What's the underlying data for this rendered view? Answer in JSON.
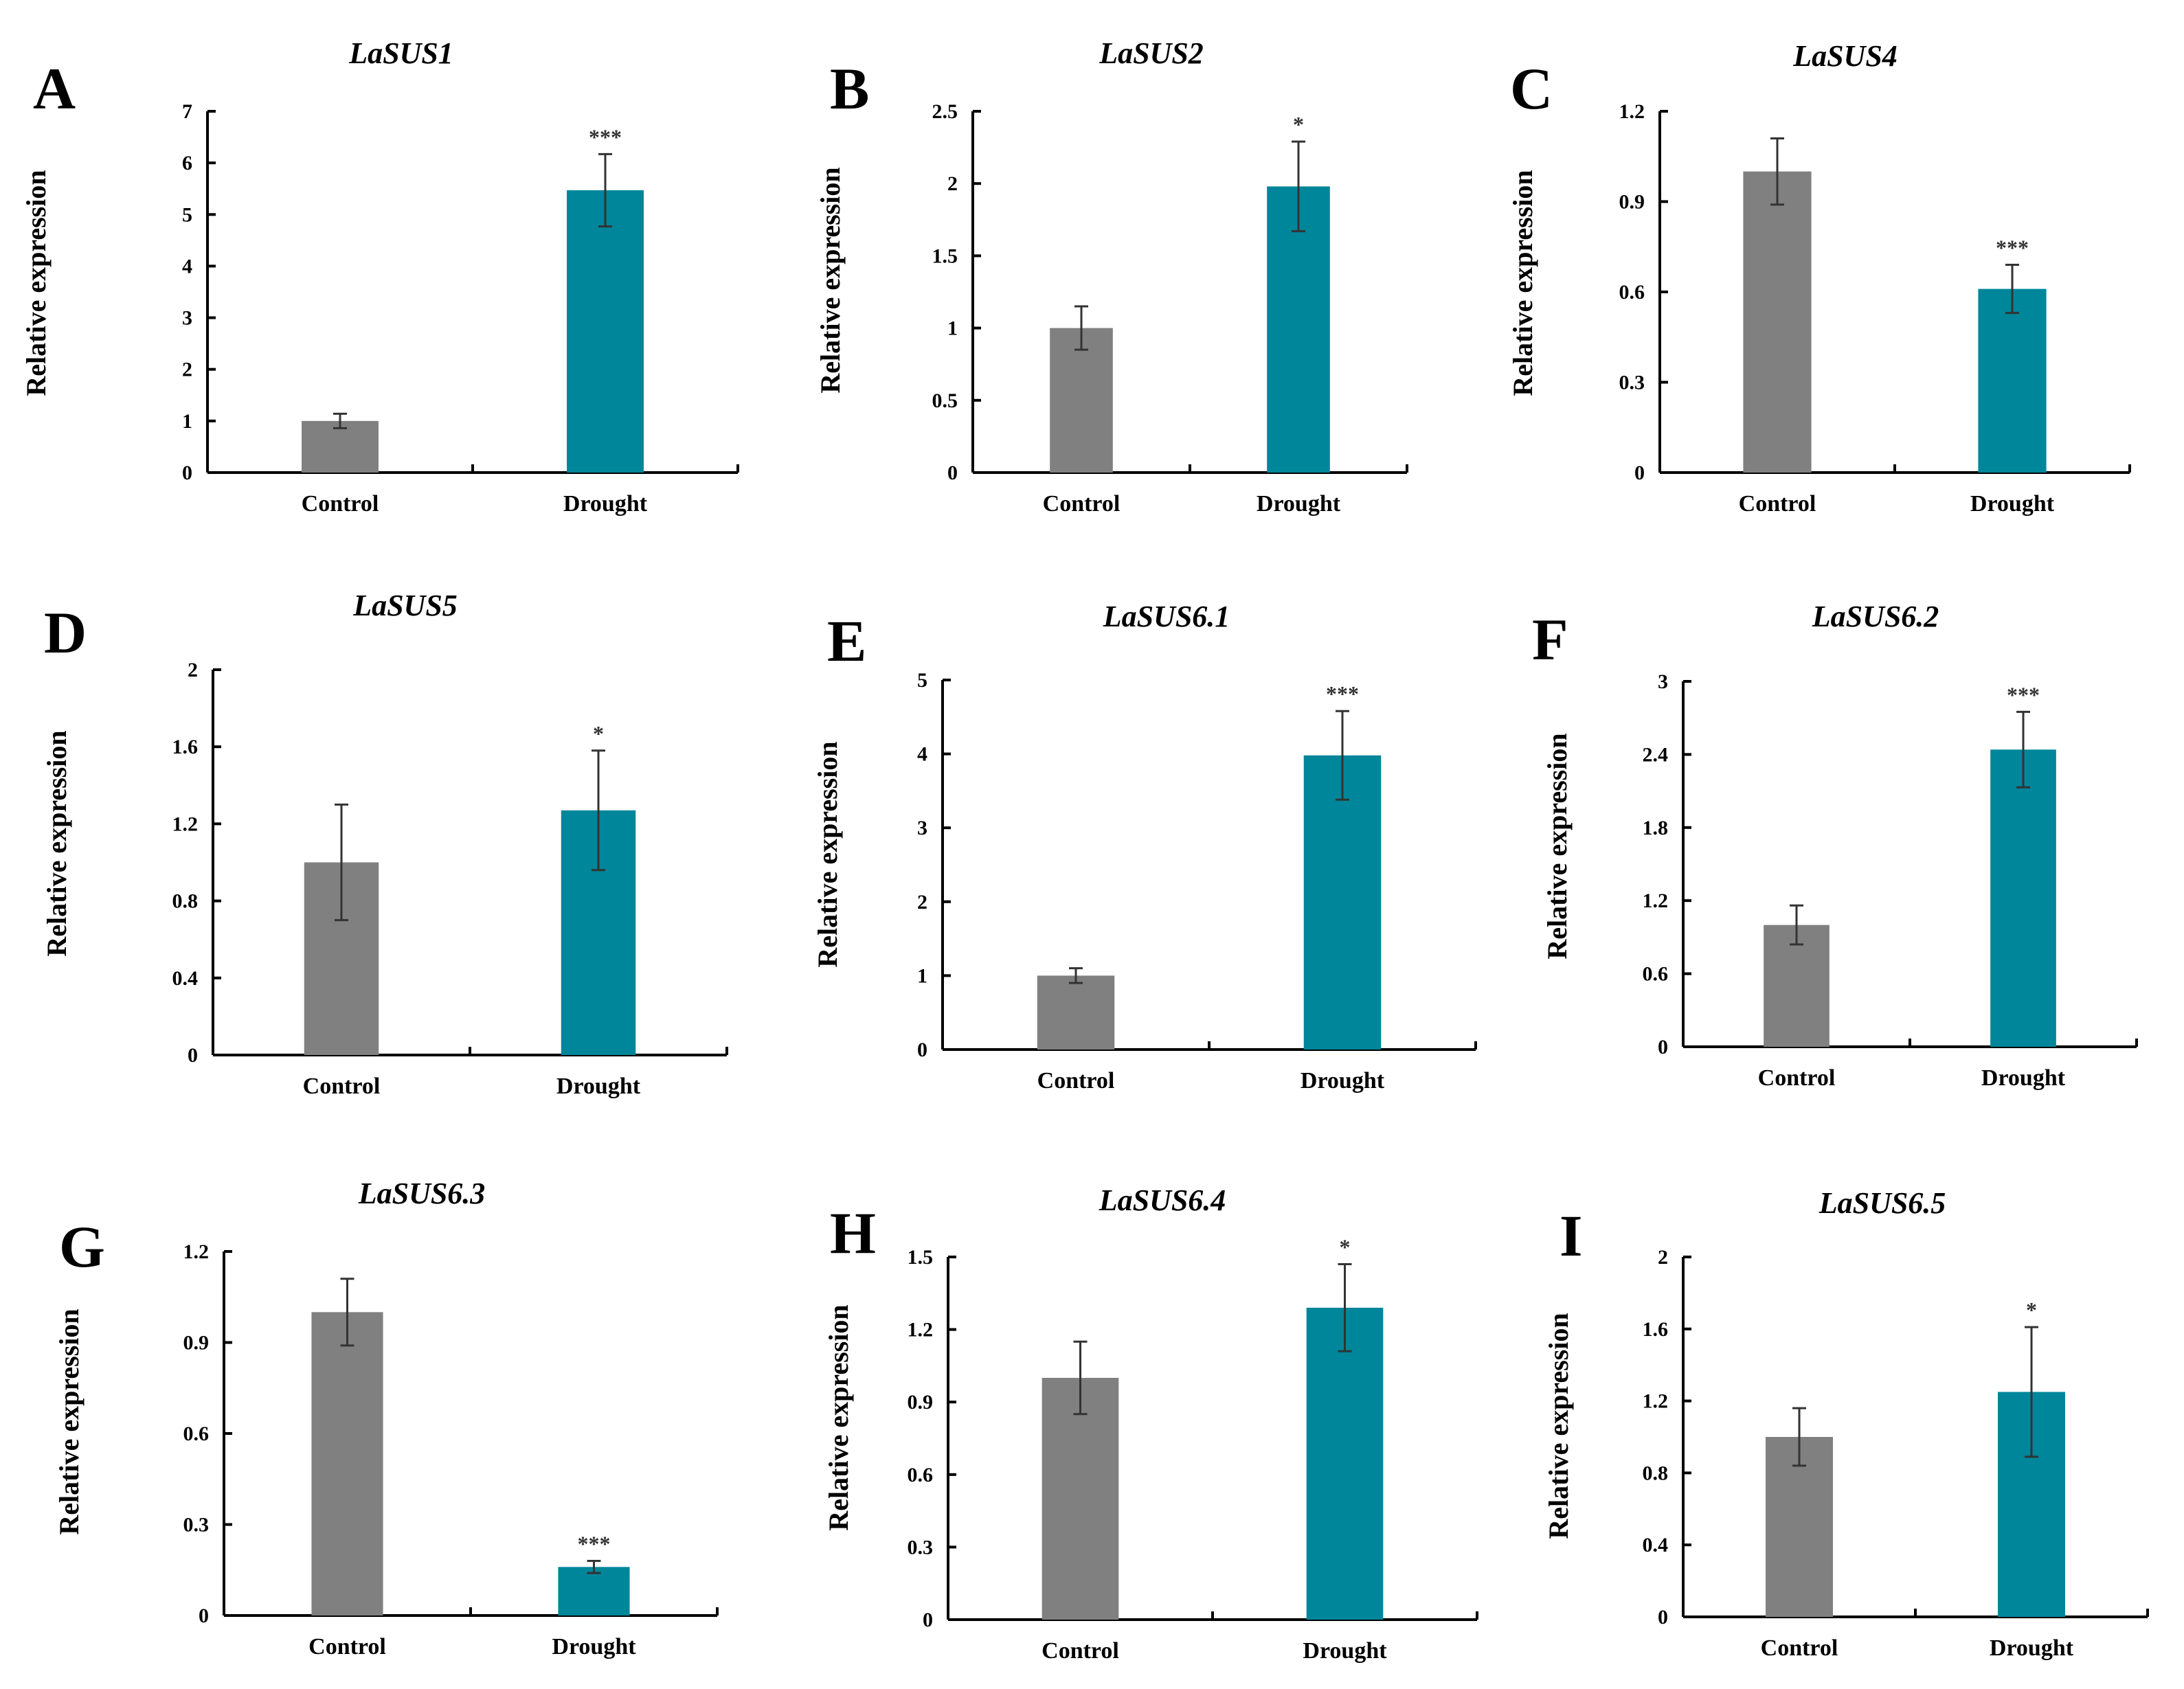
{
  "colors": {
    "control": "#808080",
    "drought": "#00869A",
    "axis": "#000000",
    "error": "#333333"
  },
  "chart_data": [
    {
      "panel": "A",
      "type": "bar",
      "title": "LaSUS1",
      "ylabel": "Relative expression",
      "xlabel": "",
      "categories": [
        "Control",
        "Drought"
      ],
      "values": [
        1.0,
        5.47
      ],
      "errors": [
        0.14,
        0.7
      ],
      "significance": [
        "",
        "***"
      ],
      "ylim": [
        0,
        7
      ],
      "yticks": [
        0,
        1,
        2,
        3,
        4,
        5,
        6,
        7
      ],
      "ytick_labels": [
        "0",
        "1",
        "2",
        "3",
        "4",
        "5",
        "6",
        "7"
      ]
    },
    {
      "panel": "B",
      "type": "bar",
      "title": "LaSUS2",
      "ylabel": "Relative expression",
      "xlabel": "",
      "categories": [
        "Control",
        "Drought"
      ],
      "values": [
        1.0,
        1.98
      ],
      "errors": [
        0.15,
        0.31
      ],
      "significance": [
        "",
        "*"
      ],
      "ylim": [
        0,
        2.5
      ],
      "yticks": [
        0,
        0.5,
        1,
        1.5,
        2,
        2.5
      ],
      "ytick_labels": [
        "0",
        "0.5",
        "1",
        "1.5",
        "2",
        "2.5"
      ]
    },
    {
      "panel": "C",
      "type": "bar",
      "title": "LaSUS4",
      "ylabel": "Relative expression",
      "xlabel": "",
      "categories": [
        "Control",
        "Drought"
      ],
      "values": [
        1.0,
        0.61
      ],
      "errors": [
        0.11,
        0.08
      ],
      "significance": [
        "",
        "***"
      ],
      "ylim": [
        0,
        1.2
      ],
      "yticks": [
        0,
        0.3,
        0.6,
        0.9,
        1.2
      ],
      "ytick_labels": [
        "0",
        "0.3",
        "0.6",
        "0.9",
        "1.2"
      ]
    },
    {
      "panel": "D",
      "type": "bar",
      "title": "LaSUS5",
      "ylabel": "Relative expression",
      "xlabel": "",
      "categories": [
        "Control",
        "Drought"
      ],
      "values": [
        1.0,
        1.27
      ],
      "errors": [
        0.3,
        0.31
      ],
      "significance": [
        "",
        "*"
      ],
      "ylim": [
        0,
        2
      ],
      "yticks": [
        0,
        0.4,
        0.8,
        1.2,
        1.6,
        2
      ],
      "ytick_labels": [
        "0",
        "0.4",
        "0.8",
        "1.2",
        "1.6",
        "2"
      ]
    },
    {
      "panel": "E",
      "type": "bar",
      "title": "LaSUS6.1",
      "ylabel": "Relative expression",
      "xlabel": "",
      "categories": [
        "Control",
        "Drought"
      ],
      "values": [
        1.0,
        3.98
      ],
      "errors": [
        0.1,
        0.6
      ],
      "significance": [
        "",
        "***"
      ],
      "ylim": [
        0,
        5
      ],
      "yticks": [
        0,
        1,
        2,
        3,
        4,
        5
      ],
      "ytick_labels": [
        "0",
        "1",
        "2",
        "3",
        "4",
        "5"
      ]
    },
    {
      "panel": "F",
      "type": "bar",
      "title": "LaSUS6.2",
      "ylabel": "Relative expression",
      "xlabel": "",
      "categories": [
        "Control",
        "Drought"
      ],
      "values": [
        1.0,
        2.44
      ],
      "errors": [
        0.16,
        0.31
      ],
      "significance": [
        "",
        "***"
      ],
      "ylim": [
        0,
        3
      ],
      "yticks": [
        0,
        0.6,
        1.2,
        1.8,
        2.4,
        3
      ],
      "ytick_labels": [
        "0",
        "0.6",
        "1.2",
        "1.8",
        "2.4",
        "3"
      ]
    },
    {
      "panel": "G",
      "type": "bar",
      "title": "LaSUS6.3",
      "ylabel": "Relative expression",
      "xlabel": "",
      "categories": [
        "Control",
        "Drought"
      ],
      "values": [
        1.0,
        0.16
      ],
      "errors": [
        0.11,
        0.02
      ],
      "significance": [
        "",
        "***"
      ],
      "ylim": [
        0,
        1.2
      ],
      "yticks": [
        0,
        0.3,
        0.6,
        0.9,
        1.2
      ],
      "ytick_labels": [
        "0",
        "0.3",
        "0.6",
        "0.9",
        "1.2"
      ]
    },
    {
      "panel": "H",
      "type": "bar",
      "title": "LaSUS6.4",
      "ylabel": "Relative expression",
      "xlabel": "",
      "categories": [
        "Control",
        "Drought"
      ],
      "values": [
        1.0,
        1.29
      ],
      "errors": [
        0.15,
        0.18
      ],
      "significance": [
        "",
        "*"
      ],
      "ylim": [
        0,
        1.5
      ],
      "yticks": [
        0,
        0.3,
        0.6,
        0.9,
        1.2,
        1.5
      ],
      "ytick_labels": [
        "0",
        "0.3",
        "0.6",
        "0.9",
        "1.2",
        "1.5"
      ]
    },
    {
      "panel": "I",
      "type": "bar",
      "title": "LaSUS6.5",
      "ylabel": "Relative expression",
      "xlabel": "",
      "categories": [
        "Control",
        "Drought"
      ],
      "values": [
        1.0,
        1.25
      ],
      "errors": [
        0.16,
        0.36
      ],
      "significance": [
        "",
        "*"
      ],
      "ylim": [
        0,
        2
      ],
      "yticks": [
        0,
        0.4,
        0.8,
        1.2,
        1.6,
        2
      ],
      "ytick_labels": [
        "0",
        "0.4",
        "0.8",
        "1.2",
        "1.6",
        "2"
      ]
    }
  ]
}
